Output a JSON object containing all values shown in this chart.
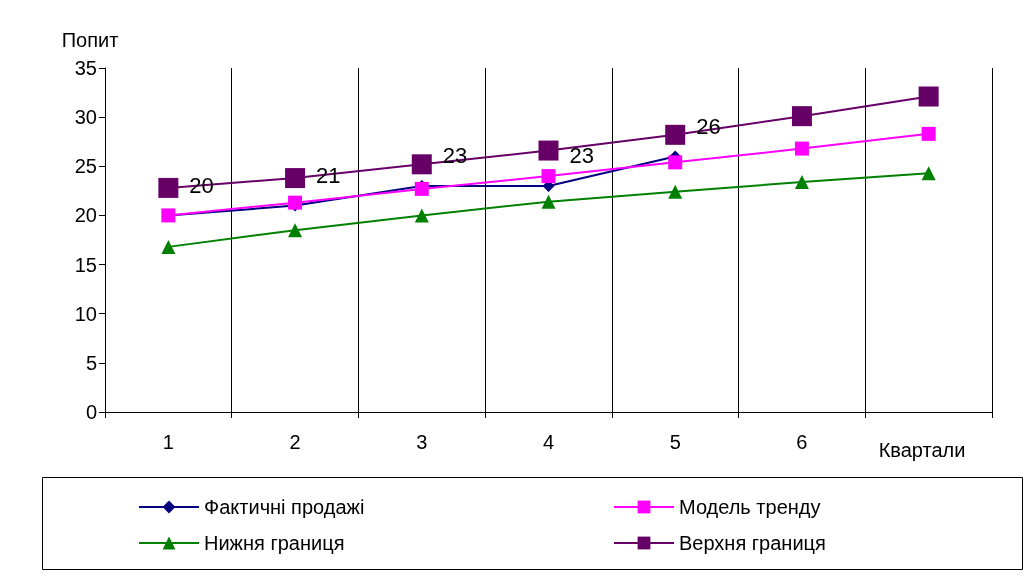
{
  "chart_data": {
    "type": "line",
    "ylabel": "Попит",
    "xlabel": "Квартали",
    "categories": [
      "1",
      "2",
      "3",
      "4",
      "5",
      "6",
      null
    ],
    "series": [
      {
        "name": "Фактичні продажі",
        "color": "#000080",
        "marker": "diamond",
        "data_labels": true,
        "values": [
          20,
          21,
          23,
          23,
          26,
          null,
          null
        ]
      },
      {
        "name": "Модель тренду",
        "color": "#ff00ff",
        "marker": "square",
        "values": [
          20,
          21.3,
          22.7,
          24,
          25.4,
          26.8,
          28.3
        ]
      },
      {
        "name": "Нижня границя",
        "color": "#008000",
        "marker": "triangle",
        "values": [
          16.8,
          18.5,
          20,
          21.4,
          22.4,
          23.4,
          24.3
        ]
      },
      {
        "name": "Верхня границя",
        "color": "#660066",
        "marker": "square",
        "values": [
          22.8,
          23.8,
          25.2,
          26.6,
          28.2,
          30.1,
          32.1
        ]
      }
    ],
    "ylim": [
      0,
      35
    ],
    "yticks": [
      0,
      5,
      10,
      15,
      20,
      25,
      30,
      35
    ],
    "grid": "x",
    "legend": "bottom"
  }
}
